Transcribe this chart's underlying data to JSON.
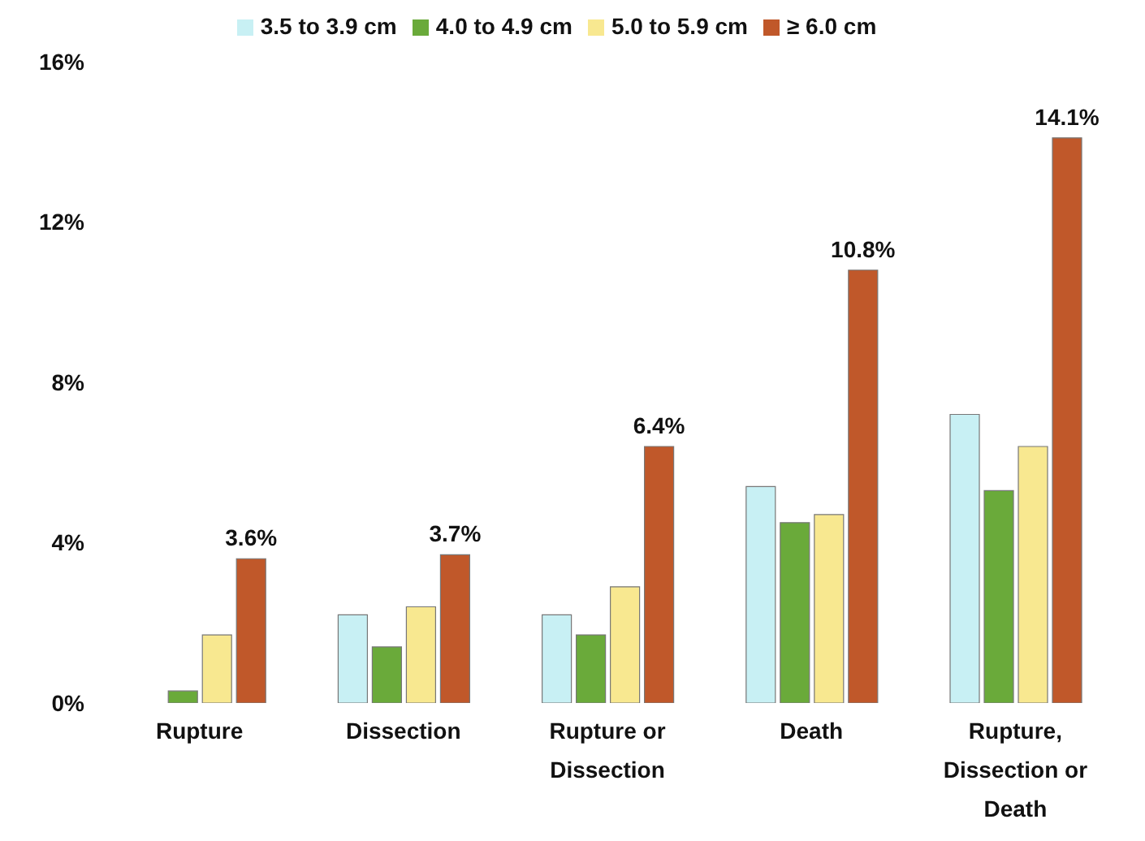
{
  "chart_data": {
    "type": "bar",
    "categories": [
      "Rupture",
      "Dissection",
      "Rupture or Dissection",
      "Death",
      "Rupture, Dissection or Death"
    ],
    "series": [
      {
        "name": "3.5 to 3.9 cm",
        "color": "#c8f0f4",
        "values": [
          0,
          2.2,
          2.2,
          5.4,
          7.2
        ]
      },
      {
        "name": "4.0 to 4.9 cm",
        "color": "#6aaa3a",
        "values": [
          0.3,
          1.4,
          1.7,
          4.5,
          5.3
        ]
      },
      {
        "name": "5.0 to 5.9 cm",
        "color": "#f8e890",
        "values": [
          1.7,
          2.4,
          2.9,
          4.7,
          6.4
        ]
      },
      {
        "name": "≥ 6.0 cm",
        "color": "#c0582a",
        "values": [
          3.6,
          3.7,
          6.4,
          10.8,
          14.1
        ],
        "value_labels": [
          "3.6%",
          "3.7%",
          "6.4%",
          "10.8%",
          "14.1%"
        ]
      }
    ],
    "ylim": [
      0,
      16
    ],
    "yticks": [
      {
        "value": 0,
        "label": "0%"
      },
      {
        "value": 4,
        "label": "4%"
      },
      {
        "value": 8,
        "label": "8%"
      },
      {
        "value": 12,
        "label": "12%"
      },
      {
        "value": 16,
        "label": "16%"
      }
    ],
    "legend": "top"
  }
}
